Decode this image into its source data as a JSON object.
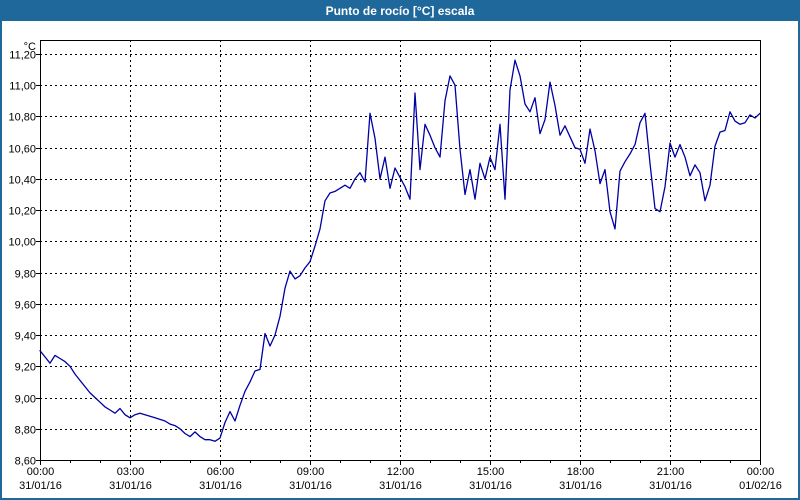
{
  "window": {
    "title": "Punto de rocío [°C] escala"
  },
  "colors": {
    "titlebar_bg": "#1e689b",
    "window_border": "#1e689b",
    "plot_border": "#000000",
    "grid": "#000000",
    "series_line": "#0000a5",
    "background": "#ffffff",
    "text": "#000000"
  },
  "chart_data": {
    "type": "line",
    "title": "Punto de rocío [°C] escala",
    "grid": true,
    "legend": "none",
    "y_axis": {
      "unit_label": "°C",
      "min": 8.6,
      "max": 11.2,
      "tick_step": 0.2,
      "tick_labels": [
        "11,20",
        "11,00",
        "10,80",
        "10,60",
        "10,40",
        "10,20",
        "10,00",
        "9,80",
        "9,60",
        "9,40",
        "9,20",
        "9,00",
        "8,80",
        "8,60"
      ]
    },
    "x_axis": {
      "min_hours": 0,
      "max_hours": 24,
      "major_tick_hours": 3,
      "minor_tick_hours": 1,
      "ticks": [
        {
          "t": 0,
          "time": "00:00",
          "date": "31/01/16"
        },
        {
          "t": 3,
          "time": "03:00",
          "date": "31/01/16"
        },
        {
          "t": 6,
          "time": "06:00",
          "date": "31/01/16"
        },
        {
          "t": 9,
          "time": "09:00",
          "date": "31/01/16"
        },
        {
          "t": 12,
          "time": "12:00",
          "date": "31/01/16"
        },
        {
          "t": 15,
          "time": "15:00",
          "date": "31/01/16"
        },
        {
          "t": 18,
          "time": "18:00",
          "date": "31/01/16"
        },
        {
          "t": 21,
          "time": "21:00",
          "date": "31/01/16"
        },
        {
          "t": 24,
          "time": "00:00",
          "date": "01/02/16"
        }
      ]
    },
    "series": [
      {
        "name": "Punto de rocío",
        "color": "#0000a5",
        "points": [
          [
            0,
            9.3
          ],
          [
            0.167,
            9.26
          ],
          [
            0.333,
            9.22
          ],
          [
            0.5,
            9.27
          ],
          [
            0.667,
            9.25
          ],
          [
            0.833,
            9.23
          ],
          [
            1,
            9.2
          ],
          [
            1.167,
            9.15
          ],
          [
            1.333,
            9.11
          ],
          [
            1.5,
            9.07
          ],
          [
            1.667,
            9.03
          ],
          [
            1.833,
            9.0
          ],
          [
            2,
            8.97
          ],
          [
            2.167,
            8.94
          ],
          [
            2.333,
            8.92
          ],
          [
            2.5,
            8.9
          ],
          [
            2.667,
            8.93
          ],
          [
            2.833,
            8.89
          ],
          [
            3,
            8.87
          ],
          [
            3.167,
            8.89
          ],
          [
            3.333,
            8.9
          ],
          [
            3.5,
            8.89
          ],
          [
            3.667,
            8.88
          ],
          [
            3.833,
            8.87
          ],
          [
            4,
            8.86
          ],
          [
            4.167,
            8.85
          ],
          [
            4.333,
            8.83
          ],
          [
            4.5,
            8.82
          ],
          [
            4.667,
            8.8
          ],
          [
            4.833,
            8.77
          ],
          [
            5,
            8.75
          ],
          [
            5.167,
            8.78
          ],
          [
            5.333,
            8.75
          ],
          [
            5.5,
            8.73
          ],
          [
            5.667,
            8.73
          ],
          [
            5.833,
            8.72
          ],
          [
            6,
            8.74
          ],
          [
            6.167,
            8.84
          ],
          [
            6.333,
            8.91
          ],
          [
            6.5,
            8.85
          ],
          [
            6.667,
            8.95
          ],
          [
            6.833,
            9.04
          ],
          [
            7,
            9.1
          ],
          [
            7.167,
            9.17
          ],
          [
            7.333,
            9.18
          ],
          [
            7.5,
            9.41
          ],
          [
            7.667,
            9.33
          ],
          [
            7.833,
            9.4
          ],
          [
            8,
            9.52
          ],
          [
            8.167,
            9.7
          ],
          [
            8.333,
            9.81
          ],
          [
            8.5,
            9.76
          ],
          [
            8.667,
            9.78
          ],
          [
            8.833,
            9.83
          ],
          [
            9,
            9.87
          ],
          [
            9.167,
            9.97
          ],
          [
            9.333,
            10.08
          ],
          [
            9.5,
            10.26
          ],
          [
            9.667,
            10.31
          ],
          [
            9.833,
            10.32
          ],
          [
            10,
            10.34
          ],
          [
            10.167,
            10.36
          ],
          [
            10.333,
            10.34
          ],
          [
            10.5,
            10.4
          ],
          [
            10.667,
            10.44
          ],
          [
            10.833,
            10.38
          ],
          [
            11,
            10.82
          ],
          [
            11.167,
            10.66
          ],
          [
            11.333,
            10.4
          ],
          [
            11.5,
            10.54
          ],
          [
            11.667,
            10.34
          ],
          [
            11.833,
            10.47
          ],
          [
            12,
            10.41
          ],
          [
            12.167,
            10.35
          ],
          [
            12.333,
            10.27
          ],
          [
            12.5,
            10.95
          ],
          [
            12.667,
            10.46
          ],
          [
            12.833,
            10.75
          ],
          [
            13,
            10.68
          ],
          [
            13.167,
            10.6
          ],
          [
            13.333,
            10.54
          ],
          [
            13.5,
            10.9
          ],
          [
            13.667,
            11.06
          ],
          [
            13.833,
            11.0
          ],
          [
            14,
            10.59
          ],
          [
            14.167,
            10.3
          ],
          [
            14.333,
            10.46
          ],
          [
            14.5,
            10.27
          ],
          [
            14.667,
            10.5
          ],
          [
            14.833,
            10.4
          ],
          [
            15,
            10.54
          ],
          [
            15.167,
            10.46
          ],
          [
            15.333,
            10.75
          ],
          [
            15.5,
            10.27
          ],
          [
            15.667,
            10.97
          ],
          [
            15.833,
            11.16
          ],
          [
            16,
            11.06
          ],
          [
            16.167,
            10.88
          ],
          [
            16.333,
            10.83
          ],
          [
            16.5,
            10.92
          ],
          [
            16.667,
            10.69
          ],
          [
            16.833,
            10.78
          ],
          [
            17,
            11.02
          ],
          [
            17.167,
            10.87
          ],
          [
            17.333,
            10.68
          ],
          [
            17.5,
            10.74
          ],
          [
            17.667,
            10.67
          ],
          [
            17.833,
            10.6
          ],
          [
            18,
            10.59
          ],
          [
            18.167,
            10.5
          ],
          [
            18.333,
            10.72
          ],
          [
            18.5,
            10.58
          ],
          [
            18.667,
            10.37
          ],
          [
            18.833,
            10.46
          ],
          [
            19,
            10.19
          ],
          [
            19.167,
            10.08
          ],
          [
            19.333,
            10.45
          ],
          [
            19.5,
            10.51
          ],
          [
            19.667,
            10.56
          ],
          [
            19.833,
            10.62
          ],
          [
            20,
            10.76
          ],
          [
            20.167,
            10.82
          ],
          [
            20.333,
            10.5
          ],
          [
            20.5,
            10.21
          ],
          [
            20.667,
            10.19
          ],
          [
            20.833,
            10.35
          ],
          [
            21,
            10.63
          ],
          [
            21.167,
            10.54
          ],
          [
            21.333,
            10.62
          ],
          [
            21.5,
            10.54
          ],
          [
            21.667,
            10.42
          ],
          [
            21.833,
            10.49
          ],
          [
            22,
            10.44
          ],
          [
            22.167,
            10.26
          ],
          [
            22.333,
            10.36
          ],
          [
            22.5,
            10.61
          ],
          [
            22.667,
            10.7
          ],
          [
            22.833,
            10.71
          ],
          [
            23,
            10.83
          ],
          [
            23.167,
            10.77
          ],
          [
            23.333,
            10.75
          ],
          [
            23.5,
            10.76
          ],
          [
            23.667,
            10.81
          ],
          [
            23.833,
            10.79
          ],
          [
            24,
            10.82
          ]
        ]
      }
    ]
  }
}
